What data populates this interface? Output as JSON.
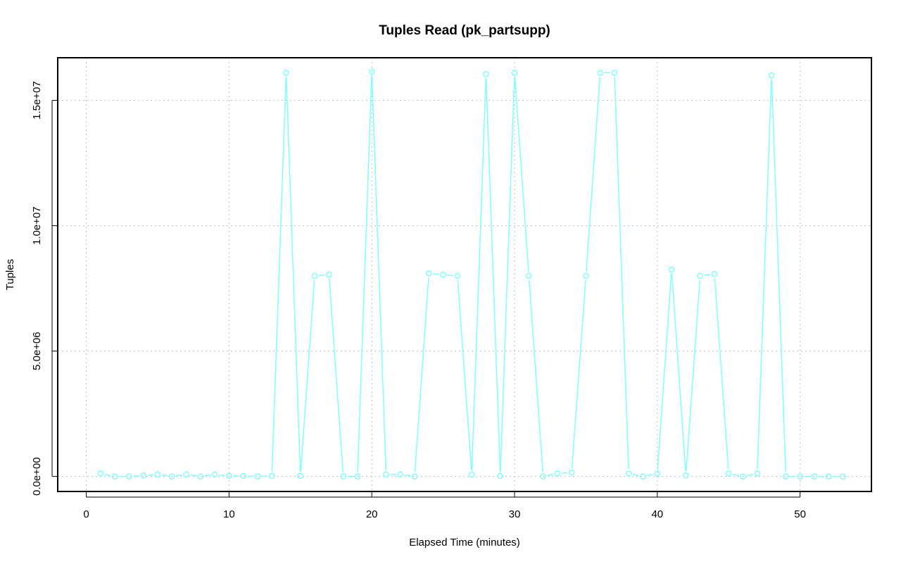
{
  "chart_data": {
    "type": "line",
    "title": "Tuples Read (pk_partsupp)",
    "xlabel": "Elapsed Time (minutes)",
    "ylabel": "Tuples",
    "xlim": [
      -2,
      55
    ],
    "ylim": [
      -600000,
      16700000
    ],
    "x_ticks": [
      0,
      10,
      20,
      30,
      40,
      50
    ],
    "x_tick_labels": [
      "0",
      "10",
      "20",
      "30",
      "40",
      "50"
    ],
    "y_ticks": [
      0,
      5000000,
      10000000,
      15000000
    ],
    "y_tick_labels": [
      "0.0e+00",
      "5.0e+06",
      "1.0e+07",
      "1.5e+07"
    ],
    "grid": true,
    "color": "#7fffff",
    "series": [
      {
        "x": [
          1,
          2,
          3,
          4,
          5,
          6,
          7,
          8,
          9,
          10,
          11,
          12,
          13,
          14,
          15,
          16,
          17,
          18,
          19,
          20,
          21,
          22,
          23,
          24,
          25,
          26,
          27,
          28,
          29,
          30,
          31,
          32,
          33,
          34,
          35,
          36,
          37,
          38,
          39,
          40,
          41,
          42,
          43,
          44,
          45,
          46,
          47,
          48,
          49,
          50,
          51,
          52,
          53
        ],
        "values": [
          120000,
          0,
          0,
          40000,
          80000,
          0,
          80000,
          0,
          80000,
          20000,
          20000,
          0,
          20000,
          16100000,
          20000,
          8000000,
          8050000,
          0,
          0,
          16150000,
          80000,
          80000,
          0,
          8100000,
          8050000,
          8000000,
          80000,
          16050000,
          20000,
          16100000,
          8000000,
          0,
          120000,
          160000,
          8000000,
          16100000,
          16100000,
          120000,
          0,
          120000,
          8250000,
          40000,
          8000000,
          8080000,
          120000,
          0,
          120000,
          16000000,
          0,
          0,
          0,
          0,
          0
        ]
      }
    ]
  }
}
